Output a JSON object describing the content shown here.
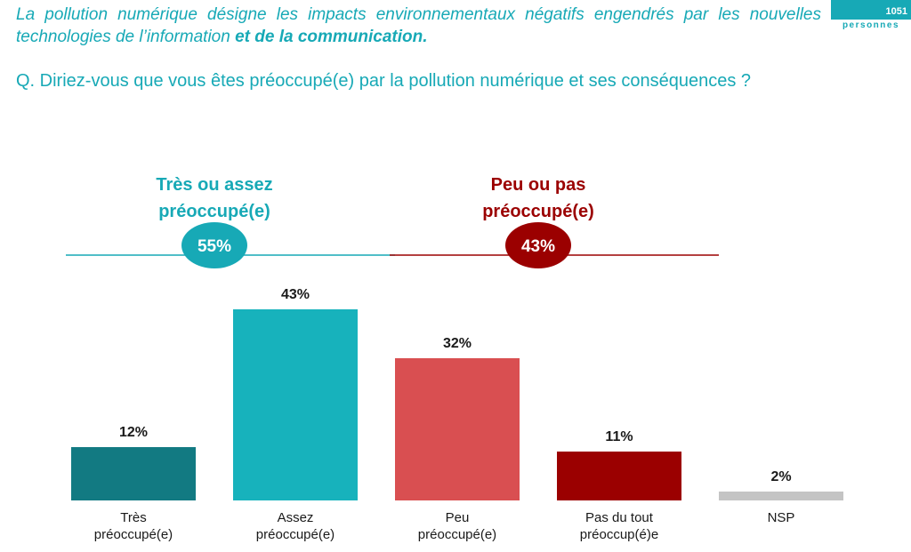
{
  "header": {
    "intro_part1": "La pollution numérique désigne les impacts environnementaux négatifs engendrés par les nouvelles technologies de l’information",
    "intro_part2": " et de la communication.",
    "question": "Q. Diriez-vous que vous êtes préoccupé(e) par la pollution numérique et ses conséquences ?",
    "sample_count": "1051",
    "sample_unit": "personnes"
  },
  "colors": {
    "teal_text": "#17a9b6",
    "maroon_text": "#9b0000",
    "bar_tres": "#127a82",
    "bar_assez": "#17b2bc",
    "bar_peu": "#d94f51",
    "bar_pas": "#9b0000",
    "bar_nsp": "#c4c4c4"
  },
  "chart_data": {
    "type": "bar",
    "categories": [
      [
        "Très",
        "préoccupé(e)"
      ],
      [
        "Assez",
        "préoccupé(e)"
      ],
      [
        "Peu",
        "préoccupé(e)"
      ],
      [
        "Pas du tout",
        "préoccup(é)e"
      ],
      [
        "NSP"
      ]
    ],
    "values": [
      12,
      43,
      32,
      11,
      2
    ],
    "value_labels": [
      "12%",
      "43%",
      "32%",
      "11%",
      "2%"
    ],
    "ylim": [
      0,
      43
    ],
    "groups": [
      {
        "label_lines": [
          "Très ou assez",
          "préoccupé(e)"
        ],
        "value": 55,
        "value_label": "55%",
        "color": "#17a9b6",
        "members": [
          0,
          1
        ]
      },
      {
        "label_lines": [
          "Peu ou pas",
          "préoccupé(e)"
        ],
        "value": 43,
        "value_label": "43%",
        "color": "#9b0000",
        "members": [
          2,
          3
        ]
      }
    ]
  }
}
